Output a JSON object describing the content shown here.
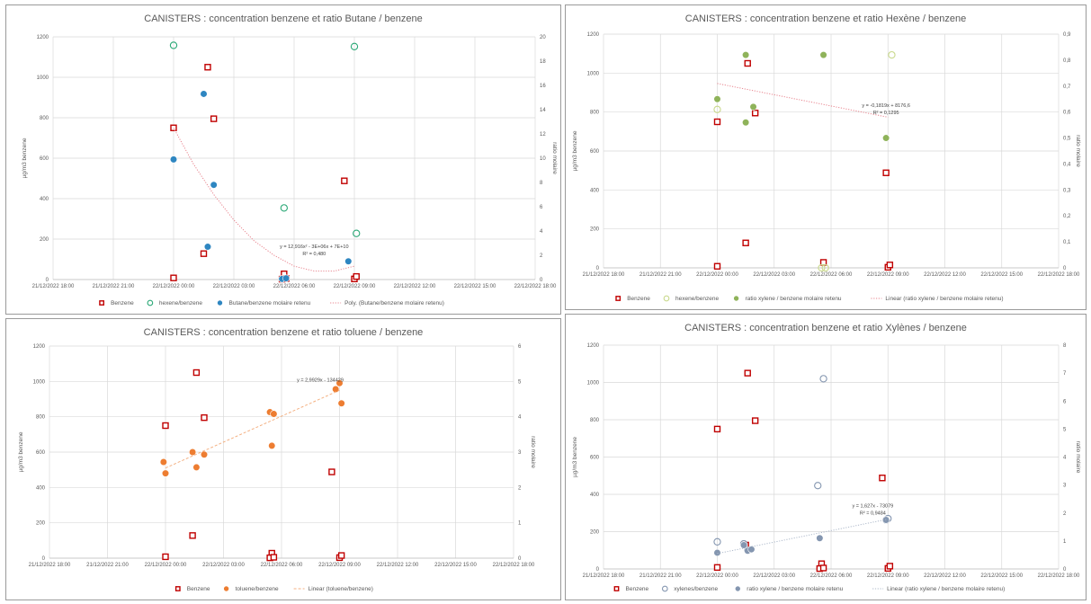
{
  "chart_data": [
    {
      "type": "scatter",
      "title": "CANISTERS : concentration benzene et ratio Butane / benzene",
      "ylabel": "µg/m3 benzene",
      "y2label": "ratio molaire",
      "xticks": [
        "21/12/2022 18:00",
        "21/12/2022 21:00",
        "22/12/2022 00:00",
        "22/12/2022 03:00",
        "22/12/2022 06:00",
        "22/12/2022 09:00",
        "22/12/2022 12:00",
        "22/12/2022 15:00",
        "22/12/2022 18:00"
      ],
      "ylim": [
        0,
        1200
      ],
      "yticks": [
        "0",
        "200",
        "400",
        "600",
        "800",
        "1000",
        "1200"
      ],
      "y2lim": [
        0,
        20
      ],
      "y2ticks": [
        "0",
        "2",
        "4",
        "6",
        "8",
        "10",
        "12",
        "14",
        "16",
        "18",
        "20"
      ],
      "grid": "horizontal",
      "series": [
        {
          "name": "Benzene",
          "axis": "left",
          "marker": "square",
          "color": "#c00000",
          "points": [
            [
              6.0,
              750
            ],
            [
              6.0,
              8
            ],
            [
              7.7,
              1050
            ],
            [
              7.5,
              128
            ],
            [
              8.0,
              795
            ],
            [
              11.5,
              28
            ],
            [
              11.4,
              2
            ],
            [
              11.6,
              5
            ],
            [
              14.5,
              488
            ],
            [
              15.0,
              3
            ],
            [
              15.1,
              15
            ]
          ]
        },
        {
          "name": "hexene/benzene",
          "axis": "right",
          "marker": "open-circle",
          "color": "#2aa876",
          "points": [
            [
              6.0,
              19.3
            ],
            [
              11.5,
              5.9
            ],
            [
              15.0,
              19.2
            ],
            [
              15.1,
              3.8
            ]
          ]
        },
        {
          "name": "Butane/benzene molaire retenu",
          "axis": "right",
          "marker": "filled-circle",
          "color": "#2e86c1",
          "points": [
            [
              6.0,
              9.9
            ],
            [
              7.5,
              15.3
            ],
            [
              8.0,
              7.8
            ],
            [
              7.7,
              2.7
            ],
            [
              11.4,
              0.05
            ],
            [
              11.6,
              0.1
            ],
            [
              14.7,
              1.5
            ]
          ]
        },
        {
          "name": "Poly. (Butane/benzene molaire retenu)",
          "axis": "right",
          "type": "trend",
          "color": "#e8848e",
          "points": [
            [
              6.0,
              12.5
            ],
            [
              7.0,
              9.5
            ],
            [
              8.0,
              7.0
            ],
            [
              9.0,
              4.9
            ],
            [
              10.0,
              3.2
            ],
            [
              11.0,
              2.0
            ],
            [
              12.0,
              1.1
            ],
            [
              13.0,
              0.7
            ],
            [
              14.0,
              0.7
            ],
            [
              15.0,
              1.1
            ]
          ]
        }
      ],
      "annotations": [
        "y = 12,916x² - 3E+06x + 7E+10",
        "R² = 0,480"
      ]
    },
    {
      "type": "scatter",
      "title": "CANISTERS : concentration benzene et ratio Hexène / benzene",
      "ylabel": "µg/m3 benzene",
      "y2label": "ratio molaire",
      "xticks": [
        "21/12/2022 18:00",
        "21/12/2022 21:00",
        "22/12/2022 00:00",
        "22/12/2022 03:00",
        "22/12/2022 06:00",
        "22/12/2022 09:00",
        "22/12/2022 12:00",
        "22/12/2022 15:00",
        "22/12/2022 18:00"
      ],
      "ylim": [
        0,
        1200
      ],
      "yticks": [
        "0",
        "200",
        "400",
        "600",
        "800",
        "1000",
        "1200"
      ],
      "y2lim": [
        0,
        0.9
      ],
      "y2ticks": [
        "0",
        "0,1",
        "0,2",
        "0,3",
        "0,4",
        "0,5",
        "0,6",
        "0,7",
        "0,8",
        "0,9"
      ],
      "grid": "horizontal",
      "series": [
        {
          "name": "Benzene",
          "axis": "left",
          "marker": "square",
          "color": "#c00000",
          "points": [
            [
              6.0,
              750
            ],
            [
              6.0,
              8
            ],
            [
              7.6,
              1050
            ],
            [
              7.5,
              128
            ],
            [
              8.0,
              795
            ],
            [
              11.6,
              28
            ],
            [
              15.0,
              3
            ],
            [
              14.9,
              488
            ],
            [
              15.1,
              15
            ]
          ]
        },
        {
          "name": "hexene/benzene",
          "axis": "right",
          "marker": "open-circle",
          "color": "#c9d98c",
          "points": [
            [
              6.0,
              0.61
            ],
            [
              11.5,
              0.0
            ],
            [
              11.7,
              0.0
            ],
            [
              15.2,
              0.82
            ]
          ]
        },
        {
          "name": "ratio xylene / benzene molaire retenu",
          "axis": "right",
          "marker": "filled-circle",
          "color": "#8fb35a",
          "points": [
            [
              6.0,
              0.65
            ],
            [
              7.5,
              0.82
            ],
            [
              7.5,
              0.56
            ],
            [
              7.9,
              0.62
            ],
            [
              11.6,
              0.82
            ],
            [
              14.9,
              0.5
            ]
          ]
        },
        {
          "name": "Linear (ratio xylene / benzene molaire retenu)",
          "axis": "right",
          "type": "trend",
          "color": "#e8848e",
          "points": [
            [
              6.0,
              0.71
            ],
            [
              15.0,
              0.58
            ]
          ]
        }
      ],
      "annotations": [
        "y = -0,1819x + 8176,6",
        "R² = 0,1295"
      ]
    },
    {
      "type": "scatter",
      "title": "CANISTERS : concentration benzene et ratio toluene / benzene",
      "ylabel": "µg/m3 benzene",
      "y2label": "ratio molaire",
      "xticks": [
        "21/12/2022 18:00",
        "21/12/2022 21:00",
        "22/12/2022 00:00",
        "22/12/2022 03:00",
        "22/12/2022 06:00",
        "22/12/2022 09:00",
        "22/12/2022 12:00",
        "22/12/2022 15:00",
        "22/12/2022 18:00"
      ],
      "ylim": [
        0,
        1200
      ],
      "yticks": [
        "0",
        "200",
        "400",
        "600",
        "800",
        "1000",
        "1200"
      ],
      "y2lim": [
        0,
        6
      ],
      "y2ticks": [
        "0",
        "1",
        "2",
        "3",
        "4",
        "5",
        "6"
      ],
      "grid": "horizontal",
      "series": [
        {
          "name": "Benzene",
          "axis": "left",
          "marker": "square",
          "color": "#c00000",
          "points": [
            [
              6.0,
              750
            ],
            [
              6.0,
              8
            ],
            [
              7.6,
              1050
            ],
            [
              7.4,
              128
            ],
            [
              8.0,
              795
            ],
            [
              11.5,
              28
            ],
            [
              11.4,
              2
            ],
            [
              11.6,
              5
            ],
            [
              14.6,
              488
            ],
            [
              15.0,
              3
            ],
            [
              15.1,
              15
            ]
          ]
        },
        {
          "name": "toluene/benzene",
          "axis": "right",
          "marker": "filled-circle",
          "color": "#ed7d31",
          "points": [
            [
              5.9,
              2.72
            ],
            [
              6.0,
              2.4
            ],
            [
              7.4,
              3.0
            ],
            [
              7.6,
              2.57
            ],
            [
              8.0,
              2.93
            ],
            [
              11.4,
              4.13
            ],
            [
              11.6,
              4.08
            ],
            [
              11.5,
              3.18
            ],
            [
              14.8,
              4.78
            ],
            [
              15.0,
              4.95
            ],
            [
              15.1,
              4.38
            ]
          ]
        },
        {
          "name": "Linear (toluene/benzene)",
          "axis": "right",
          "type": "trend",
          "color": "#f4b183",
          "points": [
            [
              6.0,
              2.55
            ],
            [
              15.0,
              4.75
            ]
          ]
        }
      ],
      "annotations": [
        "y = 2,9929x - 134429"
      ]
    },
    {
      "type": "scatter",
      "title": "CANISTERS : concentration benzene et ratio Xylènes / benzene",
      "ylabel": "µg/m3 benzene",
      "y2label": "ratio molaire",
      "xticks": [
        "21/12/2022 18:00",
        "21/12/2022 21:00",
        "22/12/2022 00:00",
        "22/12/2022 03:00",
        "22/12/2022 06:00",
        "22/12/2022 09:00",
        "22/12/2022 12:00",
        "22/12/2022 15:00",
        "22/12/2022 18:00"
      ],
      "ylim": [
        0,
        1200
      ],
      "yticks": [
        "0",
        "200",
        "400",
        "600",
        "800",
        "1000",
        "1200"
      ],
      "y2lim": [
        0,
        8
      ],
      "y2ticks": [
        "0",
        "1",
        "2",
        "3",
        "4",
        "5",
        "6",
        "7",
        "8"
      ],
      "grid": "horizontal",
      "series": [
        {
          "name": "Benzene",
          "axis": "left",
          "marker": "square",
          "color": "#c00000",
          "points": [
            [
              6.0,
              750
            ],
            [
              6.0,
              8
            ],
            [
              7.6,
              1050
            ],
            [
              7.5,
              128
            ],
            [
              8.0,
              795
            ],
            [
              11.5,
              28
            ],
            [
              11.4,
              2
            ],
            [
              11.6,
              5
            ],
            [
              14.7,
              488
            ],
            [
              15.0,
              3
            ],
            [
              15.1,
              15
            ]
          ]
        },
        {
          "name": "xylenes/benzene",
          "axis": "right",
          "marker": "open-circle",
          "color": "#8496b0",
          "points": [
            [
              6.0,
              0.97
            ],
            [
              7.4,
              0.9
            ],
            [
              7.6,
              0.67
            ],
            [
              11.3,
              2.98
            ],
            [
              11.6,
              6.8
            ],
            [
              14.9,
              1.75
            ],
            [
              15.0,
              1.8
            ]
          ]
        },
        {
          "name": "ratio xylene / benzene molaire retenu",
          "axis": "right",
          "marker": "filled-circle",
          "color": "#8496b0",
          "points": [
            [
              6.0,
              0.58
            ],
            [
              7.4,
              0.85
            ],
            [
              7.6,
              0.65
            ],
            [
              7.8,
              0.7
            ],
            [
              11.4,
              1.1
            ],
            [
              14.9,
              1.75
            ]
          ]
        },
        {
          "name": "Linear (ratio xylene / benzene molaire retenu)",
          "axis": "right",
          "type": "trend",
          "color": "#adb9ca",
          "points": [
            [
              6.0,
              0.55
            ],
            [
              15.0,
              1.78
            ]
          ]
        }
      ],
      "annotations": [
        "y = 1,627x - 73079",
        "R² = 0,9484"
      ]
    }
  ],
  "colors": {
    "gridline": "#d9d9d9",
    "axis": "#bfbfbf",
    "text": "#595959",
    "border": "#9a9a9a"
  }
}
